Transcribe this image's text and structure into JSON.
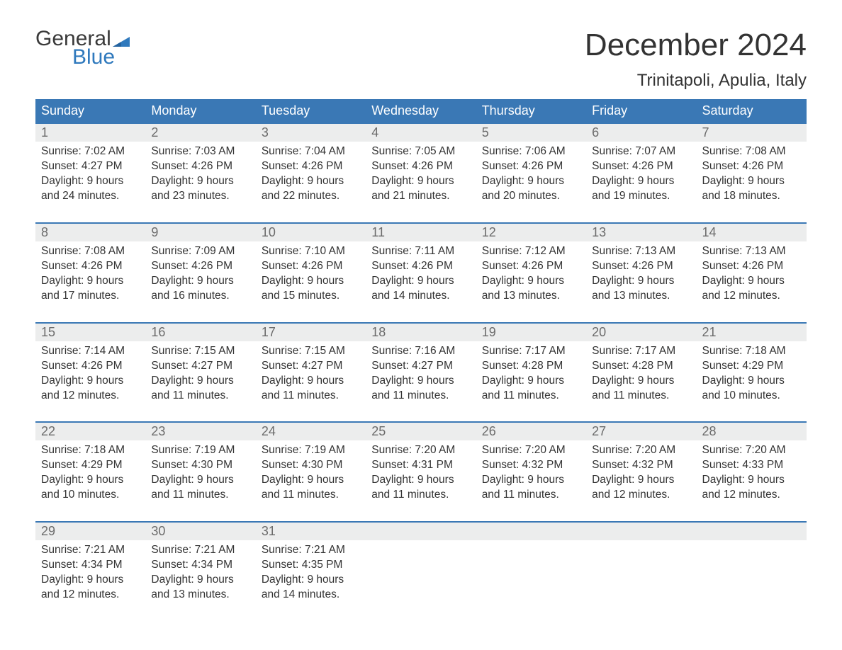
{
  "brand": {
    "general": "General",
    "blue": "Blue"
  },
  "colors": {
    "header_bg": "#3a78b5",
    "rule": "#3a78b5",
    "daynum_bg": "#eceded",
    "daynum_text": "#6b6b6b",
    "body_text": "#333333",
    "title_text": "#333333",
    "logo_gray": "#3a3a3a",
    "logo_blue": "#2f79bd",
    "page_bg": "#ffffff"
  },
  "title": "December 2024",
  "location": "Trinitapoli, Apulia, Italy",
  "days_of_week": [
    "Sunday",
    "Monday",
    "Tuesday",
    "Wednesday",
    "Thursday",
    "Friday",
    "Saturday"
  ],
  "weeks": [
    [
      {
        "n": "1",
        "sunrise": "Sunrise: 7:02 AM",
        "sunset": "Sunset: 4:27 PM",
        "day1": "Daylight: 9 hours",
        "day2": "and 24 minutes."
      },
      {
        "n": "2",
        "sunrise": "Sunrise: 7:03 AM",
        "sunset": "Sunset: 4:26 PM",
        "day1": "Daylight: 9 hours",
        "day2": "and 23 minutes."
      },
      {
        "n": "3",
        "sunrise": "Sunrise: 7:04 AM",
        "sunset": "Sunset: 4:26 PM",
        "day1": "Daylight: 9 hours",
        "day2": "and 22 minutes."
      },
      {
        "n": "4",
        "sunrise": "Sunrise: 7:05 AM",
        "sunset": "Sunset: 4:26 PM",
        "day1": "Daylight: 9 hours",
        "day2": "and 21 minutes."
      },
      {
        "n": "5",
        "sunrise": "Sunrise: 7:06 AM",
        "sunset": "Sunset: 4:26 PM",
        "day1": "Daylight: 9 hours",
        "day2": "and 20 minutes."
      },
      {
        "n": "6",
        "sunrise": "Sunrise: 7:07 AM",
        "sunset": "Sunset: 4:26 PM",
        "day1": "Daylight: 9 hours",
        "day2": "and 19 minutes."
      },
      {
        "n": "7",
        "sunrise": "Sunrise: 7:08 AM",
        "sunset": "Sunset: 4:26 PM",
        "day1": "Daylight: 9 hours",
        "day2": "and 18 minutes."
      }
    ],
    [
      {
        "n": "8",
        "sunrise": "Sunrise: 7:08 AM",
        "sunset": "Sunset: 4:26 PM",
        "day1": "Daylight: 9 hours",
        "day2": "and 17 minutes."
      },
      {
        "n": "9",
        "sunrise": "Sunrise: 7:09 AM",
        "sunset": "Sunset: 4:26 PM",
        "day1": "Daylight: 9 hours",
        "day2": "and 16 minutes."
      },
      {
        "n": "10",
        "sunrise": "Sunrise: 7:10 AM",
        "sunset": "Sunset: 4:26 PM",
        "day1": "Daylight: 9 hours",
        "day2": "and 15 minutes."
      },
      {
        "n": "11",
        "sunrise": "Sunrise: 7:11 AM",
        "sunset": "Sunset: 4:26 PM",
        "day1": "Daylight: 9 hours",
        "day2": "and 14 minutes."
      },
      {
        "n": "12",
        "sunrise": "Sunrise: 7:12 AM",
        "sunset": "Sunset: 4:26 PM",
        "day1": "Daylight: 9 hours",
        "day2": "and 13 minutes."
      },
      {
        "n": "13",
        "sunrise": "Sunrise: 7:13 AM",
        "sunset": "Sunset: 4:26 PM",
        "day1": "Daylight: 9 hours",
        "day2": "and 13 minutes."
      },
      {
        "n": "14",
        "sunrise": "Sunrise: 7:13 AM",
        "sunset": "Sunset: 4:26 PM",
        "day1": "Daylight: 9 hours",
        "day2": "and 12 minutes."
      }
    ],
    [
      {
        "n": "15",
        "sunrise": "Sunrise: 7:14 AM",
        "sunset": "Sunset: 4:26 PM",
        "day1": "Daylight: 9 hours",
        "day2": "and 12 minutes."
      },
      {
        "n": "16",
        "sunrise": "Sunrise: 7:15 AM",
        "sunset": "Sunset: 4:27 PM",
        "day1": "Daylight: 9 hours",
        "day2": "and 11 minutes."
      },
      {
        "n": "17",
        "sunrise": "Sunrise: 7:15 AM",
        "sunset": "Sunset: 4:27 PM",
        "day1": "Daylight: 9 hours",
        "day2": "and 11 minutes."
      },
      {
        "n": "18",
        "sunrise": "Sunrise: 7:16 AM",
        "sunset": "Sunset: 4:27 PM",
        "day1": "Daylight: 9 hours",
        "day2": "and 11 minutes."
      },
      {
        "n": "19",
        "sunrise": "Sunrise: 7:17 AM",
        "sunset": "Sunset: 4:28 PM",
        "day1": "Daylight: 9 hours",
        "day2": "and 11 minutes."
      },
      {
        "n": "20",
        "sunrise": "Sunrise: 7:17 AM",
        "sunset": "Sunset: 4:28 PM",
        "day1": "Daylight: 9 hours",
        "day2": "and 11 minutes."
      },
      {
        "n": "21",
        "sunrise": "Sunrise: 7:18 AM",
        "sunset": "Sunset: 4:29 PM",
        "day1": "Daylight: 9 hours",
        "day2": "and 10 minutes."
      }
    ],
    [
      {
        "n": "22",
        "sunrise": "Sunrise: 7:18 AM",
        "sunset": "Sunset: 4:29 PM",
        "day1": "Daylight: 9 hours",
        "day2": "and 10 minutes."
      },
      {
        "n": "23",
        "sunrise": "Sunrise: 7:19 AM",
        "sunset": "Sunset: 4:30 PM",
        "day1": "Daylight: 9 hours",
        "day2": "and 11 minutes."
      },
      {
        "n": "24",
        "sunrise": "Sunrise: 7:19 AM",
        "sunset": "Sunset: 4:30 PM",
        "day1": "Daylight: 9 hours",
        "day2": "and 11 minutes."
      },
      {
        "n": "25",
        "sunrise": "Sunrise: 7:20 AM",
        "sunset": "Sunset: 4:31 PM",
        "day1": "Daylight: 9 hours",
        "day2": "and 11 minutes."
      },
      {
        "n": "26",
        "sunrise": "Sunrise: 7:20 AM",
        "sunset": "Sunset: 4:32 PM",
        "day1": "Daylight: 9 hours",
        "day2": "and 11 minutes."
      },
      {
        "n": "27",
        "sunrise": "Sunrise: 7:20 AM",
        "sunset": "Sunset: 4:32 PM",
        "day1": "Daylight: 9 hours",
        "day2": "and 12 minutes."
      },
      {
        "n": "28",
        "sunrise": "Sunrise: 7:20 AM",
        "sunset": "Sunset: 4:33 PM",
        "day1": "Daylight: 9 hours",
        "day2": "and 12 minutes."
      }
    ],
    [
      {
        "n": "29",
        "sunrise": "Sunrise: 7:21 AM",
        "sunset": "Sunset: 4:34 PM",
        "day1": "Daylight: 9 hours",
        "day2": "and 12 minutes."
      },
      {
        "n": "30",
        "sunrise": "Sunrise: 7:21 AM",
        "sunset": "Sunset: 4:34 PM",
        "day1": "Daylight: 9 hours",
        "day2": "and 13 minutes."
      },
      {
        "n": "31",
        "sunrise": "Sunrise: 7:21 AM",
        "sunset": "Sunset: 4:35 PM",
        "day1": "Daylight: 9 hours",
        "day2": "and 14 minutes."
      },
      null,
      null,
      null,
      null
    ]
  ]
}
